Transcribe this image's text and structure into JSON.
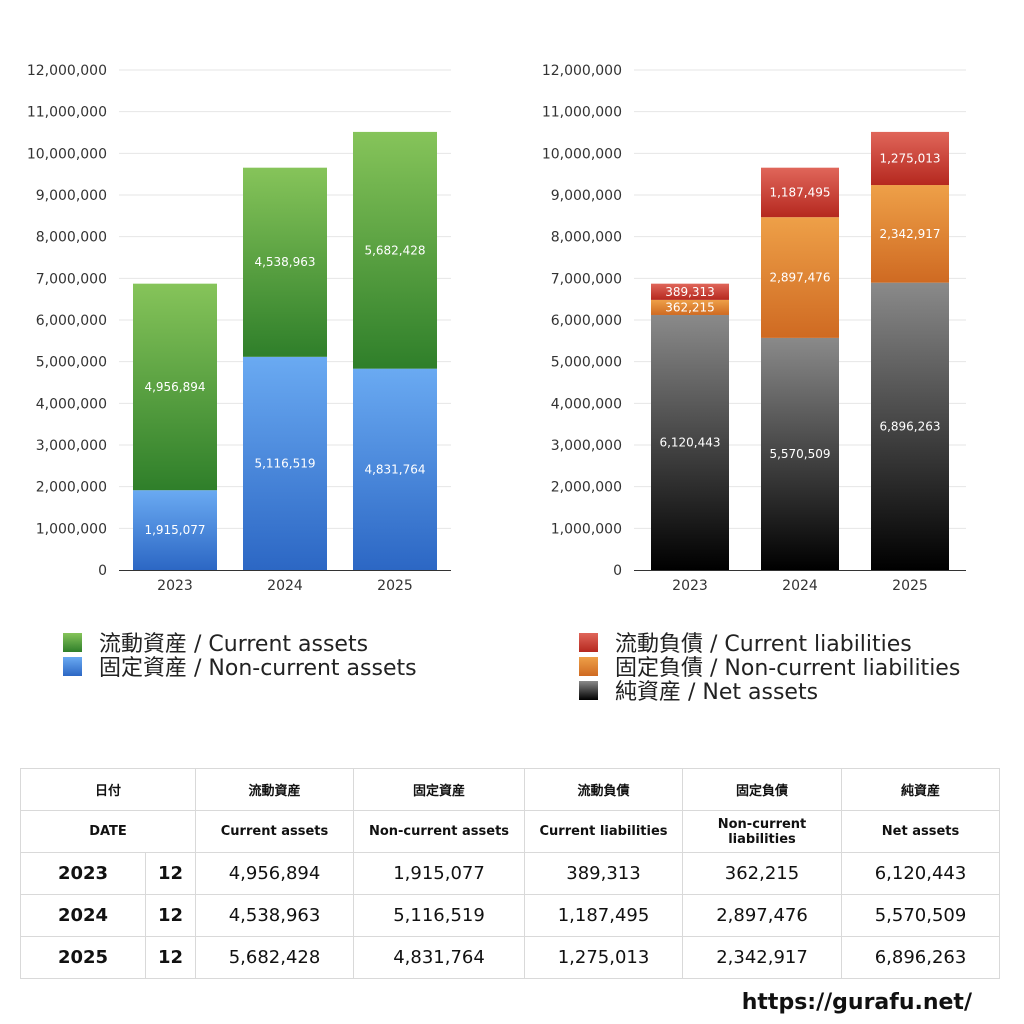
{
  "colors": {
    "current_assets": [
      "#86c45a",
      "#2f7f2a"
    ],
    "noncurrent_assets": [
      "#6aaaf2",
      "#2c67c4"
    ],
    "current_liabilities": [
      "#e0665a",
      "#b5281f"
    ],
    "noncurrent_liabilities": [
      "#eea048",
      "#cf6a22"
    ],
    "net_assets": [
      "#8a8a8a",
      "#000000"
    ]
  },
  "chart_data": [
    {
      "type": "bar",
      "stacked": true,
      "categories": [
        "2023",
        "2024",
        "2025"
      ],
      "ylim": [
        0,
        12000000
      ],
      "yticks": [
        "0",
        "1,000,000",
        "2,000,000",
        "3,000,000",
        "4,000,000",
        "5,000,000",
        "6,000,000",
        "7,000,000",
        "8,000,000",
        "9,000,000",
        "10,000,000",
        "11,000,000",
        "12,000,000"
      ],
      "grid": true,
      "legend": "bottom",
      "series": [
        {
          "name": "固定資産 / Non-current assets",
          "key": "noncurrent_assets",
          "values": [
            1915077,
            5116519,
            4831764
          ],
          "labels": [
            "1,915,077",
            "5,116,519",
            "4,831,764"
          ]
        },
        {
          "name": "流動資産 / Current assets",
          "key": "current_assets",
          "values": [
            4956894,
            4538963,
            5682428
          ],
          "labels": [
            "4,956,894",
            "4,538,963",
            "5,682,428"
          ]
        }
      ]
    },
    {
      "type": "bar",
      "stacked": true,
      "categories": [
        "2023",
        "2024",
        "2025"
      ],
      "ylim": [
        0,
        12000000
      ],
      "yticks": [
        "0",
        "1,000,000",
        "2,000,000",
        "3,000,000",
        "4,000,000",
        "5,000,000",
        "6,000,000",
        "7,000,000",
        "8,000,000",
        "9,000,000",
        "10,000,000",
        "11,000,000",
        "12,000,000"
      ],
      "grid": true,
      "legend": "bottom",
      "series": [
        {
          "name": "純資産 / Net assets",
          "key": "net_assets",
          "values": [
            6120443,
            5570509,
            6896263
          ],
          "labels": [
            "6,120,443",
            "5,570,509",
            "6,896,263"
          ]
        },
        {
          "name": "固定負債 / Non-current liabilities",
          "key": "noncurrent_liabilities",
          "values": [
            362215,
            2897476,
            2342917
          ],
          "labels": [
            "362,215",
            "2,897,476",
            "2,342,917"
          ]
        },
        {
          "name": "流動負債 / Current liabilities",
          "key": "current_liabilities",
          "values": [
            389313,
            1187495,
            1275013
          ],
          "labels": [
            "389,313",
            "1,187,495",
            "1,275,013"
          ]
        }
      ]
    }
  ],
  "legend_left": [
    {
      "text": "流動資産 / Current assets",
      "key": "current_assets"
    },
    {
      "text": "固定資産 / Non-current assets",
      "key": "noncurrent_assets"
    }
  ],
  "legend_right": [
    {
      "text": "流動負債 / Current liabilities",
      "key": "current_liabilities"
    },
    {
      "text": "固定負債 / Non-current liabilities",
      "key": "noncurrent_liabilities"
    },
    {
      "text": "純資産 / Net assets",
      "key": "net_assets"
    }
  ],
  "table": {
    "header_jp": {
      "date": "日付",
      "cols": [
        "流動資産",
        "固定資産",
        "流動負債",
        "固定負債",
        "純資産"
      ]
    },
    "header_en": {
      "date": "DATE",
      "cols": [
        "Current assets",
        "Non-current assets",
        "Current liabilities",
        "Non-current liabilities",
        "Net assets"
      ]
    },
    "rows": [
      {
        "year": "2023",
        "month": "12",
        "cells": [
          "4,956,894",
          "1,915,077",
          "389,313",
          "362,215",
          "6,120,443"
        ]
      },
      {
        "year": "2024",
        "month": "12",
        "cells": [
          "4,538,963",
          "5,116,519",
          "1,187,495",
          "2,897,476",
          "5,570,509"
        ]
      },
      {
        "year": "2025",
        "month": "12",
        "cells": [
          "5,682,428",
          "4,831,764",
          "1,275,013",
          "2,342,917",
          "6,896,263"
        ]
      }
    ]
  },
  "site_url": "https://gurafu.net/"
}
